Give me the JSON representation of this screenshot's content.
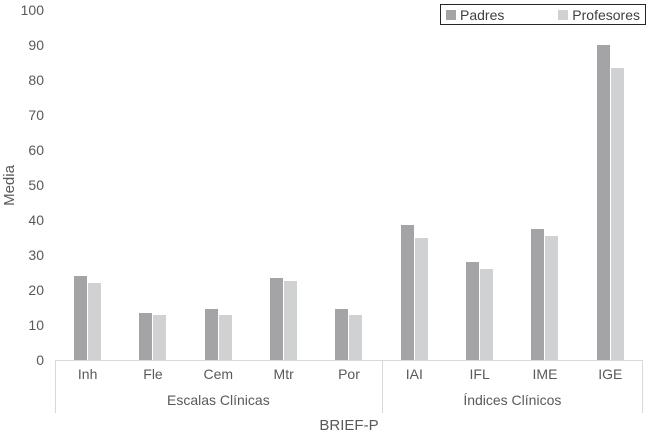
{
  "figure": {
    "y_axis_title": "Media",
    "x_axis_title": "BRIEF-P"
  },
  "legend": {
    "items": [
      {
        "label": "Padres",
        "color": "#a4a4a6"
      },
      {
        "label": "Profesores",
        "color": "#d0d1d3"
      }
    ]
  },
  "colors": {
    "padres_bar": "#a4a4a6",
    "profesores_bar": "#d0d1d3",
    "axis_text": "#595959",
    "axis_line": "#d9d9d9",
    "legend_border": "#262626"
  },
  "chart_data": {
    "type": "bar",
    "title": "",
    "xlabel": "BRIEF-P",
    "ylabel": "Media",
    "ylim": [
      0,
      100
    ],
    "yticks": [
      0,
      10,
      20,
      30,
      40,
      50,
      60,
      70,
      80,
      90,
      100
    ],
    "grid": false,
    "legend_position": "top-right",
    "categories": [
      "Inh",
      "Fle",
      "Cem",
      "Mtr",
      "Por",
      "IAI",
      "IFL",
      "IME",
      "IGE"
    ],
    "category_groups": [
      {
        "label": "Escalas Clínicas",
        "span": 5
      },
      {
        "label": "Índices Clínicos",
        "span": 4
      }
    ],
    "series": [
      {
        "name": "Padres",
        "color": "#a4a4a6",
        "values": [
          24,
          13.5,
          14.5,
          23.5,
          14.5,
          38.5,
          28,
          37.5,
          90
        ]
      },
      {
        "name": "Profesores",
        "color": "#d0d1d3",
        "values": [
          22,
          13,
          13,
          22.5,
          13,
          35,
          26,
          35.5,
          83.5
        ]
      }
    ]
  }
}
